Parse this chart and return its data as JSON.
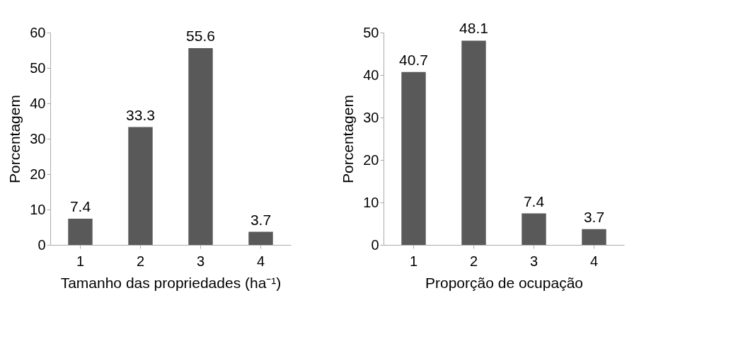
{
  "chart_data": [
    {
      "type": "bar",
      "categories": [
        "1",
        "2",
        "3",
        "4"
      ],
      "values": [
        7.4,
        33.3,
        55.6,
        3.7
      ],
      "color": "#595959",
      "xlabel": "Tamanho das propriedades (ha⁻¹)",
      "ylabel": "Porcentagem",
      "ylim": [
        0,
        60
      ],
      "yticks": [
        0,
        10,
        20,
        30,
        40,
        50,
        60
      ],
      "data_labels": true,
      "grid": false
    },
    {
      "type": "bar",
      "categories": [
        "1",
        "2",
        "3",
        "4"
      ],
      "values": [
        40.7,
        48.1,
        7.4,
        3.7
      ],
      "color": "#595959",
      "xlabel": "Proporção de ocupação",
      "ylabel": "Porcentagem",
      "ylim": [
        0,
        50
      ],
      "yticks": [
        0,
        10,
        20,
        30,
        40,
        50
      ],
      "data_labels": true,
      "grid": false
    }
  ]
}
